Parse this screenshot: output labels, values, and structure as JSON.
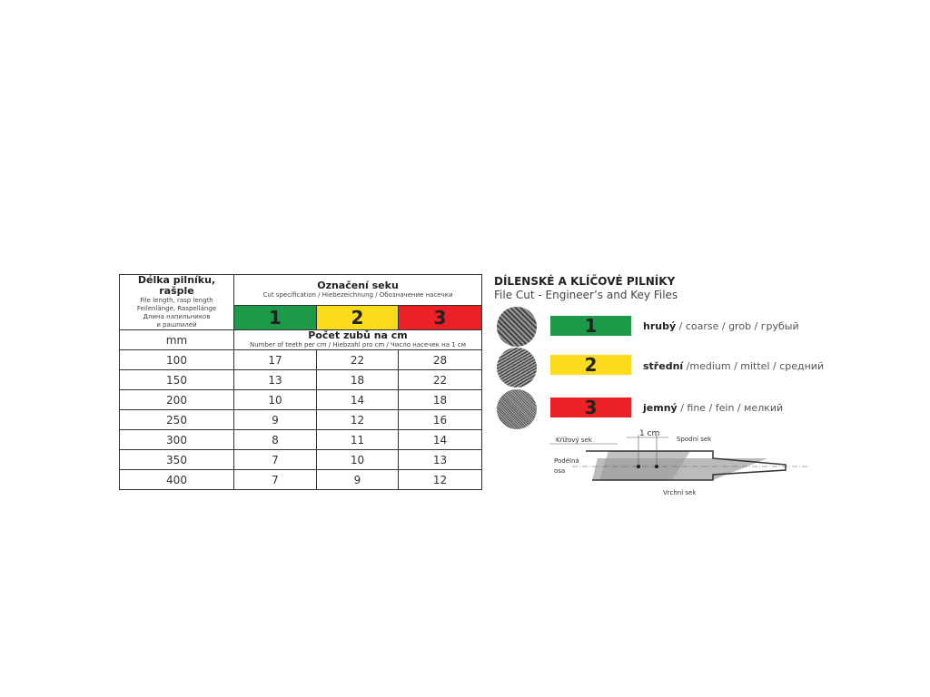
{
  "table": {
    "col_header": {
      "title": "Délka pilníku, rašple",
      "lines": [
        "File length, rasp length",
        "Feilenlänge, Raspellänge",
        "Длина напильников",
        "и рашпилей"
      ]
    },
    "cut_header": {
      "title": "Označení seku",
      "subtitle": "Cut specification / Hiebezeichnung / Обозначение насечки"
    },
    "cuts": [
      "1",
      "2",
      "3"
    ],
    "unit": "mm",
    "teeth_header": {
      "title": "Počet zubů na cm",
      "subtitle": "Number of teeth per cm / Hiebzahl pro cm / Число насечек на 1 см"
    },
    "rows": [
      [
        "100",
        "17",
        "22",
        "28"
      ],
      [
        "150",
        "13",
        "18",
        "22"
      ],
      [
        "200",
        "10",
        "14",
        "18"
      ],
      [
        "250",
        "9",
        "12",
        "16"
      ],
      [
        "300",
        "8",
        "11",
        "14"
      ],
      [
        "350",
        "7",
        "10",
        "13"
      ],
      [
        "400",
        "7",
        "9",
        "12"
      ]
    ]
  },
  "legend": {
    "title": "DÍLENSKÉ A KLÍČOVÉ PILNÍKY",
    "subtitle": "File Cut - Engineer’s and Key Files",
    "items": [
      {
        "num": "1",
        "bold": "hrubý",
        "rest": " / coarse / grob / грубый",
        "color": "#1c9a48"
      },
      {
        "num": "2",
        "bold": "střední",
        "rest": " /medium / mittel / средний",
        "color": "#fbdc1c"
      },
      {
        "num": "3",
        "bold": "jemný",
        "rest": " / fine / fein / мелкий",
        "color": "#ec2125"
      }
    ]
  },
  "diagram": {
    "dim": "1 cm",
    "cross": "Křížový sek",
    "bottom": "Spodní sek",
    "axis1": "Podélná",
    "axis2": "osa",
    "top": "Vrchní sek"
  }
}
